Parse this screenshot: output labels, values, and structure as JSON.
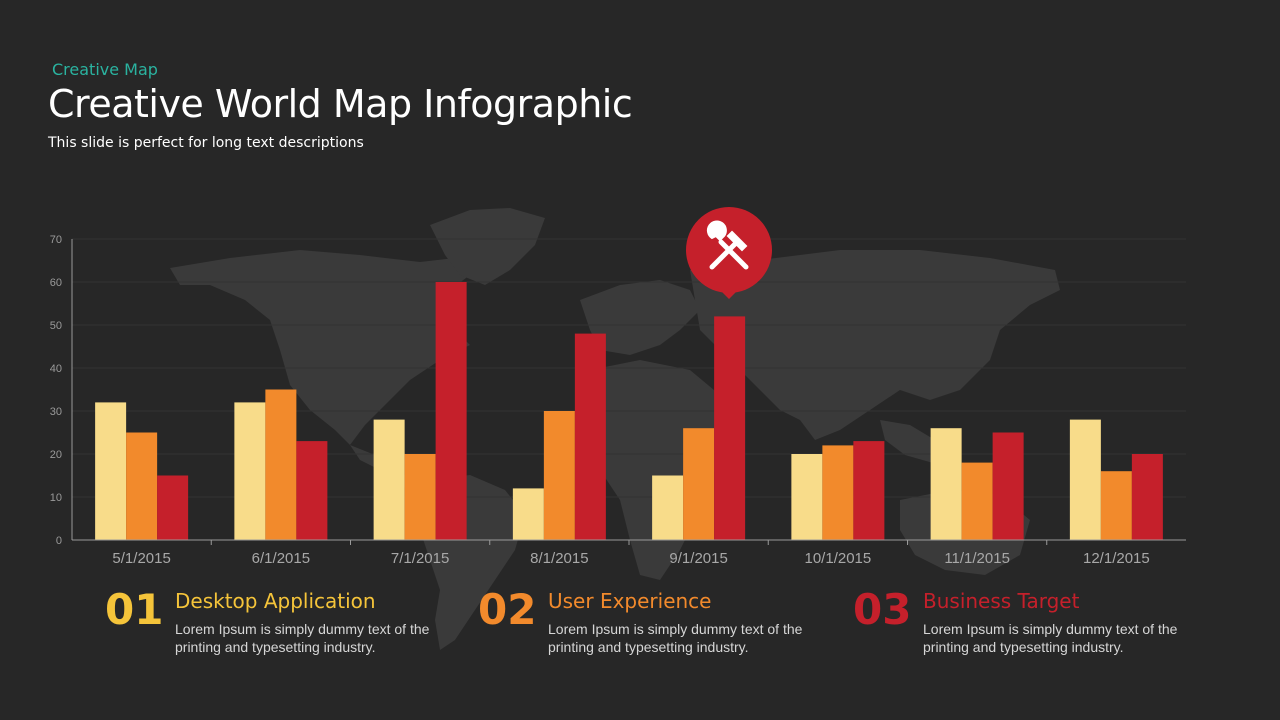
{
  "header": {
    "kicker": "Creative Map",
    "title": "Creative World Map Infographic",
    "subtitle": "This slide is perfect for long text descriptions"
  },
  "colors": {
    "background": "#272727",
    "series1": "#f8dc8a",
    "series2": "#f28a2c",
    "series3": "#c5202b",
    "accent_teal": "#2ab3a0",
    "map": "#3b3b3b"
  },
  "marker": {
    "icon": "hammer-wrench-icon"
  },
  "chart_data": {
    "type": "bar",
    "categories": [
      "5/1/2015",
      "6/1/2015",
      "7/1/2015",
      "8/1/2015",
      "9/1/2015",
      "10/1/2015",
      "11/1/2015",
      "12/1/2015"
    ],
    "series": [
      {
        "values": [
          32,
          32,
          28,
          12,
          15,
          20,
          26,
          28
        ]
      },
      {
        "values": [
          25,
          35,
          20,
          30,
          26,
          22,
          18,
          16
        ]
      },
      {
        "values": [
          15,
          23,
          60,
          48,
          52,
          23,
          25,
          20
        ]
      }
    ],
    "ylim": [
      0,
      70
    ],
    "yticks": [
      0,
      10,
      20,
      30,
      40,
      50,
      60,
      70
    ],
    "xlabel": "",
    "ylabel": "",
    "grid": true
  },
  "items": [
    {
      "num": "01",
      "title": "Desktop Application",
      "text": "Lorem Ipsum is simply dummy text of the printing and typesetting industry.",
      "color": "#f5c43a"
    },
    {
      "num": "02",
      "title": "User Experience",
      "text": "Lorem Ipsum is simply dummy text of the printing and typesetting industry.",
      "color": "#f28a2c"
    },
    {
      "num": "03",
      "title": "Business Target",
      "text": "Lorem Ipsum is simply dummy text of the printing and typesetting industry.",
      "color": "#c5202b"
    }
  ]
}
